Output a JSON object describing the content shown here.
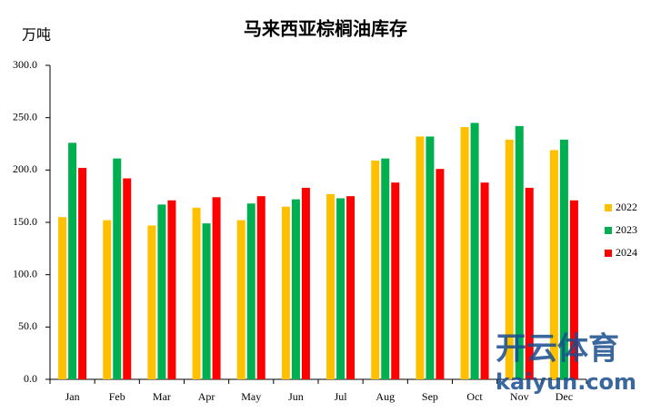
{
  "chart_data": {
    "type": "bar",
    "title": "马来西亚棕榈油库存",
    "ylabel": "万吨",
    "categories": [
      "Jan",
      "Feb",
      "Mar",
      "Apr",
      "May",
      "Jun",
      "Jul",
      "Aug",
      "Sep",
      "Oct",
      "Nov",
      "Dec"
    ],
    "series": [
      {
        "name": "2022",
        "color": "#ffc000",
        "values": [
          155,
          152,
          147,
          164,
          152,
          165,
          177,
          209,
          232,
          241,
          229,
          219
        ]
      },
      {
        "name": "2023",
        "color": "#00b050",
        "values": [
          226,
          211,
          167,
          149,
          168,
          172,
          173,
          211,
          232,
          245,
          242,
          229
        ]
      },
      {
        "name": "2024",
        "color": "#ff0000",
        "values": [
          202,
          192,
          171,
          174,
          175,
          183,
          175,
          188,
          201,
          188,
          183,
          171
        ]
      }
    ],
    "ylim": [
      0,
      300
    ],
    "yticks": [
      {
        "value": 0,
        "label": "0.0"
      },
      {
        "value": 50,
        "label": "50.0"
      },
      {
        "value": 100,
        "label": "100.0"
      },
      {
        "value": 150,
        "label": "150.0"
      },
      {
        "value": 200,
        "label": "200.0"
      },
      {
        "value": 250,
        "label": "250.0"
      },
      {
        "value": 300,
        "label": "300.0"
      }
    ],
    "grid": false,
    "legend": "right"
  },
  "watermark": {
    "brand": "开云体育",
    "site": "kaiyun.com"
  }
}
